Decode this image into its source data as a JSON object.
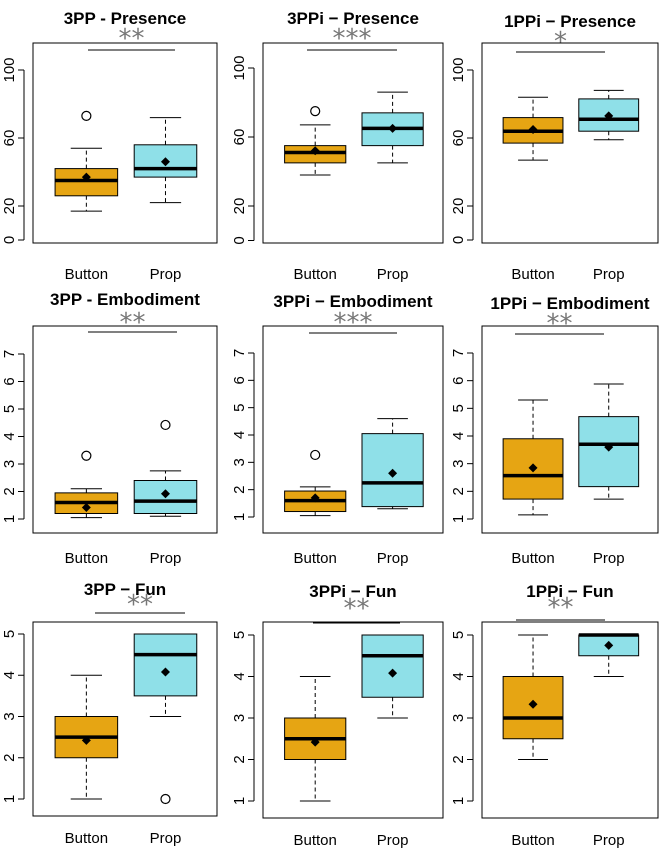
{
  "chart_data": [
    {
      "type": "box",
      "title": "3PP - Presence",
      "significance": "**",
      "categories": [
        "Button",
        "Prop"
      ],
      "yticks": [
        20,
        60,
        100
      ],
      "extra_ticks": [
        0
      ],
      "ylim": [
        0,
        100
      ],
      "series": [
        {
          "category": "Button",
          "color": "#E6A513",
          "whisker_low": 17,
          "q1": 26,
          "median": 35,
          "q3": 42,
          "whisker_high": 54,
          "mean": 37,
          "outliers": [
            73
          ]
        },
        {
          "category": "Prop",
          "color": "#8FE0E8",
          "whisker_low": 22,
          "q1": 37,
          "median": 42,
          "q3": 56,
          "whisker_high": 72,
          "mean": 46,
          "outliers": []
        }
      ]
    },
    {
      "type": "box",
      "title": "3PPi − Presence",
      "significance": "***",
      "categories": [
        "Button",
        "Prop"
      ],
      "yticks": [
        20,
        60,
        100
      ],
      "extra_ticks": [
        0
      ],
      "ylim": [
        0,
        100
      ],
      "series": [
        {
          "category": "Button",
          "color": "#E6A513",
          "whisker_low": 38,
          "q1": 45,
          "median": 51,
          "q3": 55,
          "whisker_high": 67,
          "mean": 52,
          "outliers": [
            75
          ]
        },
        {
          "category": "Prop",
          "color": "#8FE0E8",
          "whisker_low": 45,
          "q1": 55,
          "median": 65,
          "q3": 74,
          "whisker_high": 86,
          "mean": 65,
          "outliers": []
        }
      ]
    },
    {
      "type": "box",
      "title": "1PPi − Presence",
      "significance": "*",
      "categories": [
        "Button",
        "Prop"
      ],
      "yticks": [
        20,
        60,
        100
      ],
      "extra_ticks": [
        0
      ],
      "ylim": [
        0,
        100
      ],
      "series": [
        {
          "category": "Button",
          "color": "#E6A513",
          "whisker_low": 47,
          "q1": 57,
          "median": 64,
          "q3": 72,
          "whisker_high": 84,
          "mean": 65,
          "outliers": []
        },
        {
          "category": "Prop",
          "color": "#8FE0E8",
          "whisker_low": 59,
          "q1": 64,
          "median": 71,
          "q3": 83,
          "whisker_high": 88,
          "mean": 73,
          "outliers": []
        }
      ]
    },
    {
      "type": "box",
      "title": "3PP - Embodiment",
      "significance": "**",
      "categories": [
        "Button",
        "Prop"
      ],
      "yticks": [
        1,
        2,
        3,
        4,
        5,
        6,
        7
      ],
      "ylim": [
        1,
        7
      ],
      "series": [
        {
          "category": "Button",
          "color": "#E6A513",
          "whisker_low": 1.05,
          "q1": 1.2,
          "median": 1.6,
          "q3": 1.95,
          "whisker_high": 2.1,
          "mean": 1.42,
          "outliers": [
            3.3
          ]
        },
        {
          "category": "Prop",
          "color": "#8FE0E8",
          "whisker_low": 1.1,
          "q1": 1.2,
          "median": 1.65,
          "q3": 2.4,
          "whisker_high": 2.75,
          "mean": 1.92,
          "outliers": [
            4.42
          ]
        }
      ]
    },
    {
      "type": "box",
      "title": "3PPi − Embodiment",
      "significance": "***",
      "categories": [
        "Button",
        "Prop"
      ],
      "yticks": [
        1,
        2,
        3,
        4,
        5,
        6,
        7
      ],
      "ylim": [
        1,
        7
      ],
      "series": [
        {
          "category": "Button",
          "color": "#E6A513",
          "whisker_low": 1.05,
          "q1": 1.2,
          "median": 1.6,
          "q3": 1.95,
          "whisker_high": 2.1,
          "mean": 1.7,
          "outliers": [
            3.27
          ]
        },
        {
          "category": "Prop",
          "color": "#8FE0E8",
          "whisker_low": 1.3,
          "q1": 1.38,
          "median": 2.25,
          "q3": 4.05,
          "whisker_high": 4.6,
          "mean": 2.6,
          "outliers": []
        }
      ]
    },
    {
      "type": "box",
      "title": "1PPi − Embodiment",
      "significance": "**",
      "categories": [
        "Button",
        "Prop"
      ],
      "yticks": [
        1,
        2,
        3,
        4,
        5,
        6,
        7
      ],
      "ylim": [
        1,
        7
      ],
      "series": [
        {
          "category": "Button",
          "color": "#E6A513",
          "whisker_low": 1.15,
          "q1": 1.72,
          "median": 2.57,
          "q3": 3.9,
          "whisker_high": 5.3,
          "mean": 2.85,
          "outliers": []
        },
        {
          "category": "Prop",
          "color": "#8FE0E8",
          "whisker_low": 1.72,
          "q1": 2.17,
          "median": 3.7,
          "q3": 4.7,
          "whisker_high": 5.88,
          "mean": 3.6,
          "outliers": []
        }
      ]
    },
    {
      "type": "box",
      "title": "3PP − Fun",
      "significance": "**",
      "categories": [
        "Button",
        "Prop"
      ],
      "yticks": [
        1,
        2,
        3,
        4,
        5
      ],
      "ylim": [
        1,
        5
      ],
      "series": [
        {
          "category": "Button",
          "color": "#E6A513",
          "whisker_low": 1,
          "q1": 2,
          "median": 2.5,
          "q3": 3,
          "whisker_high": 4,
          "mean": 2.42,
          "outliers": []
        },
        {
          "category": "Prop",
          "color": "#8FE0E8",
          "whisker_low": 3,
          "q1": 3.5,
          "median": 4.5,
          "q3": 5,
          "whisker_high": 5,
          "mean": 4.08,
          "outliers": [
            1
          ]
        }
      ]
    },
    {
      "type": "box",
      "title": "3PPi − Fun",
      "significance": "**",
      "categories": [
        "Button",
        "Prop"
      ],
      "yticks": [
        1,
        2,
        3,
        4,
        5
      ],
      "ylim": [
        1,
        5
      ],
      "series": [
        {
          "category": "Button",
          "color": "#E6A513",
          "whisker_low": 1,
          "q1": 2,
          "median": 2.5,
          "q3": 3,
          "whisker_high": 4,
          "mean": 2.42,
          "outliers": []
        },
        {
          "category": "Prop",
          "color": "#8FE0E8",
          "whisker_low": 3,
          "q1": 3.5,
          "median": 4.5,
          "q3": 5,
          "whisker_high": 5,
          "mean": 4.08,
          "outliers": []
        }
      ]
    },
    {
      "type": "box",
      "title": "1PPi − Fun",
      "significance": "**",
      "categories": [
        "Button",
        "Prop"
      ],
      "yticks": [
        1,
        2,
        3,
        4,
        5
      ],
      "ylim": [
        1,
        5
      ],
      "series": [
        {
          "category": "Button",
          "color": "#E6A513",
          "whisker_low": 2,
          "q1": 2.5,
          "median": 3,
          "q3": 4,
          "whisker_high": 5,
          "mean": 3.33,
          "outliers": []
        },
        {
          "category": "Prop",
          "color": "#8FE0E8",
          "whisker_low": 4,
          "q1": 4.5,
          "median": 5,
          "q3": 5,
          "whisker_high": 5,
          "mean": 4.75,
          "outliers": []
        }
      ]
    }
  ]
}
